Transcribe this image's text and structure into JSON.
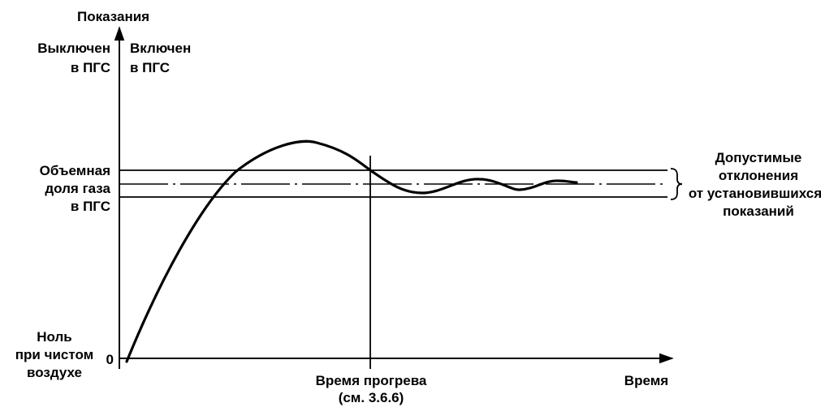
{
  "y_axis_title": "Показания",
  "gas_off": {
    "line1": "Выключен",
    "line2": "в ПГС"
  },
  "gas_on": {
    "line1": "Включен",
    "line2": "в ПГС"
  },
  "gas_fraction": {
    "line1": "Объемная",
    "line2": "доля газа",
    "line3": "в ПГС"
  },
  "tolerance": {
    "line1": "Допустимые",
    "line2": "отклонения",
    "line3": "от установившихся",
    "line4": "показаний"
  },
  "zero_label": {
    "line1": "Ноль",
    "line2": "при чистом",
    "line3": "воздухе"
  },
  "zero_tick": "0",
  "warmup_label": {
    "line1": "Время прогрева",
    "line2": "(см. 3.6.6)"
  },
  "x_axis_title": "Время"
}
